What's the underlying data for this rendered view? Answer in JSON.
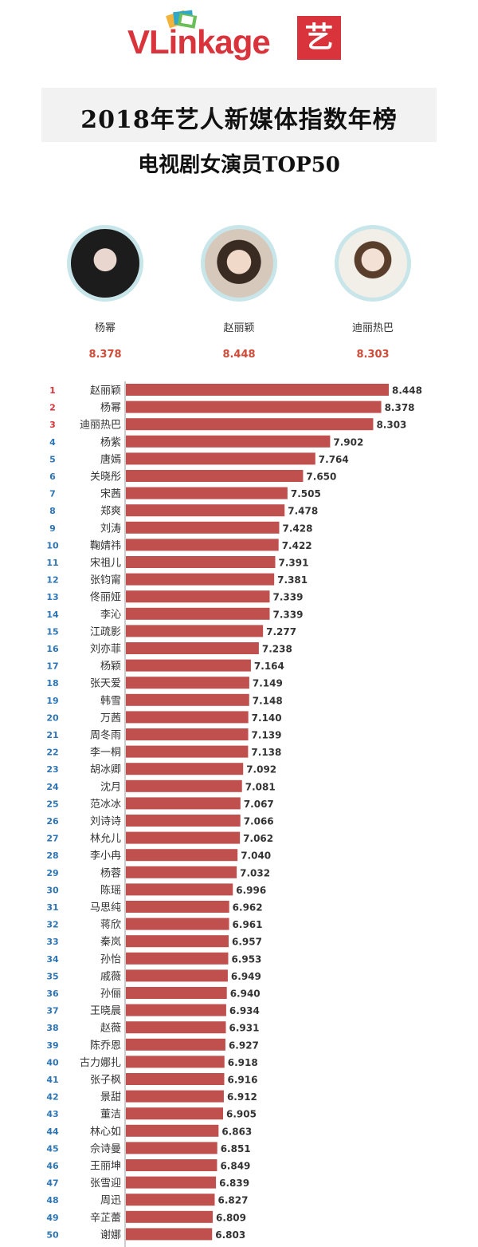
{
  "logo": {
    "brand": "VLinkage",
    "badge_char": "艺"
  },
  "chart_data": {
    "type": "bar",
    "title": "2018年艺人新媒体指数年榜",
    "subtitle": "电视剧女演员TOP50",
    "top3": [
      {
        "name": "杨幂",
        "score": "8.378"
      },
      {
        "name": "赵丽颖",
        "score": "8.448"
      },
      {
        "name": "迪丽热巴",
        "score": "8.303"
      }
    ],
    "ranks": [
      1,
      2,
      3,
      4,
      5,
      6,
      7,
      8,
      9,
      10,
      11,
      12,
      13,
      14,
      15,
      16,
      17,
      18,
      19,
      20,
      21,
      22,
      23,
      24,
      25,
      26,
      27,
      28,
      29,
      30,
      31,
      32,
      33,
      34,
      35,
      36,
      37,
      38,
      39,
      40,
      41,
      42,
      43,
      44,
      45,
      46,
      47,
      48,
      49,
      50
    ],
    "categories": [
      "赵丽颖",
      "杨幂",
      "迪丽热巴",
      "杨紫",
      "唐嫣",
      "关晓彤",
      "宋茜",
      "郑爽",
      "刘涛",
      "鞠婧祎",
      "宋祖儿",
      "张钧甯",
      "佟丽娅",
      "李沁",
      "江疏影",
      "刘亦菲",
      "杨颖",
      "张天爱",
      "韩雪",
      "万茜",
      "周冬雨",
      "李一桐",
      "胡冰卿",
      "沈月",
      "范冰冰",
      "刘诗诗",
      "林允儿",
      "李小冉",
      "杨蓉",
      "陈瑶",
      "马思纯",
      "蒋欣",
      "秦岚",
      "孙怡",
      "戚薇",
      "孙俪",
      "王晓晨",
      "赵薇",
      "陈乔恩",
      "古力娜扎",
      "张子枫",
      "景甜",
      "董洁",
      "林心如",
      "佘诗曼",
      "王丽坤",
      "张雪迎",
      "周迅",
      "辛芷蕾",
      "谢娜"
    ],
    "values": [
      8.448,
      8.378,
      8.303,
      7.902,
      7.764,
      7.65,
      7.505,
      7.478,
      7.428,
      7.422,
      7.391,
      7.381,
      7.339,
      7.339,
      7.277,
      7.238,
      7.164,
      7.149,
      7.148,
      7.14,
      7.139,
      7.138,
      7.092,
      7.081,
      7.067,
      7.066,
      7.062,
      7.04,
      7.032,
      6.996,
      6.962,
      6.961,
      6.957,
      6.953,
      6.949,
      6.94,
      6.934,
      6.931,
      6.927,
      6.918,
      6.916,
      6.912,
      6.905,
      6.863,
      6.851,
      6.849,
      6.839,
      6.827,
      6.809,
      6.803
    ],
    "value_labels": [
      "8.448",
      "8.378",
      "8.303",
      "7.902",
      "7.764",
      "7.650",
      "7.505",
      "7.478",
      "7.428",
      "7.422",
      "7.391",
      "7.381",
      "7.339",
      "7.339",
      "7.277",
      "7.238",
      "7.164",
      "7.149",
      "7.148",
      "7.140",
      "7.139",
      "7.138",
      "7.092",
      "7.081",
      "7.067",
      "7.066",
      "7.062",
      "7.040",
      "7.032",
      "6.996",
      "6.962",
      "6.961",
      "6.957",
      "6.953",
      "6.949",
      "6.940",
      "6.934",
      "6.931",
      "6.927",
      "6.918",
      "6.916",
      "6.912",
      "6.905",
      "6.863",
      "6.851",
      "6.849",
      "6.839",
      "6.827",
      "6.809",
      "6.803"
    ],
    "xlim": [
      6.0,
      8.448
    ],
    "grid": false,
    "legend": "none"
  },
  "colors": {
    "bar": "#c0504d",
    "rank_red": "#d9333b",
    "rank_blue": "#2e75b6",
    "score": "#d04a36"
  }
}
